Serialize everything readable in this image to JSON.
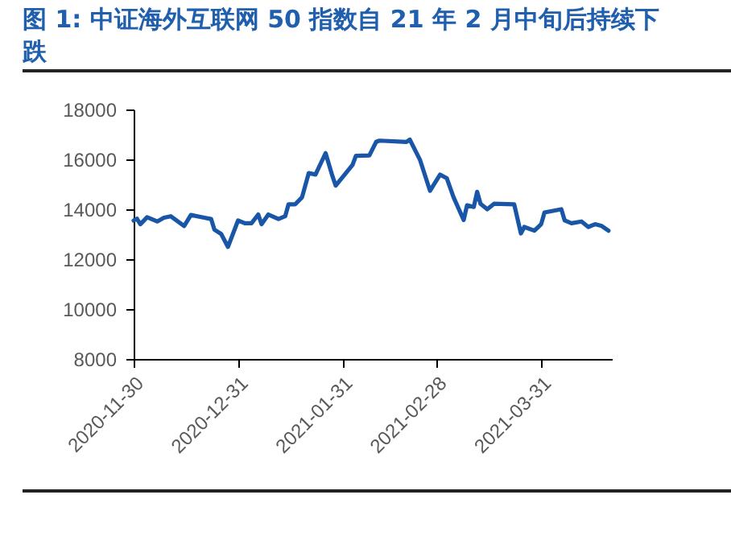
{
  "chart_data": {
    "type": "line",
    "title": "图 1: 中证海外互联网 50 指数自 21 年 2 月中旬后持续下跌",
    "x": [
      "2020-11-30",
      "2020-12-01",
      "2020-12-02",
      "2020-12-04",
      "2020-12-07",
      "2020-12-09",
      "2020-12-11",
      "2020-12-15",
      "2020-12-17",
      "2020-12-21",
      "2020-12-23",
      "2020-12-24",
      "2020-12-26",
      "2020-12-28",
      "2020-12-31",
      "2021-01-02",
      "2021-01-04",
      "2021-01-06",
      "2021-01-07",
      "2021-01-09",
      "2021-01-12",
      "2021-01-14",
      "2021-01-15",
      "2021-01-17",
      "2021-01-19",
      "2021-01-21",
      "2021-01-23",
      "2021-01-26",
      "2021-01-28",
      "2021-01-29",
      "2021-02-03",
      "2021-02-04",
      "2021-02-08",
      "2021-02-10",
      "2021-02-11",
      "2021-02-19",
      "2021-02-20",
      "2021-02-23",
      "2021-02-26",
      "2021-03-01",
      "2021-03-03",
      "2021-03-05",
      "2021-03-08",
      "2021-03-09",
      "2021-03-11",
      "2021-03-12",
      "2021-03-13",
      "2021-03-15",
      "2021-03-17",
      "2021-03-23",
      "2021-03-25",
      "2021-03-26",
      "2021-03-29",
      "2021-03-31",
      "2021-04-01",
      "2021-04-06",
      "2021-04-07",
      "2021-04-09",
      "2021-04-12",
      "2021-04-14",
      "2021-04-16",
      "2021-04-18",
      "2021-04-20"
    ],
    "series": [
      {
        "color": "#1a56a8",
        "values": [
          13550,
          13620,
          13400,
          13680,
          13510,
          13660,
          13720,
          13330,
          13770,
          13660,
          13610,
          13180,
          13010,
          12490,
          13550,
          13440,
          13440,
          13790,
          13400,
          13790,
          13610,
          13720,
          14200,
          14200,
          14480,
          15450,
          15390,
          16250,
          15340,
          14950,
          15780,
          16140,
          16160,
          16700,
          16750,
          16700,
          16790,
          15990,
          14740,
          15390,
          15240,
          14480,
          13570,
          14160,
          14090,
          14700,
          14220,
          14000,
          14220,
          14200,
          13030,
          13290,
          13140,
          13400,
          13870,
          14000,
          13550,
          13440,
          13510,
          13290,
          13400,
          13330,
          13140
        ]
      }
    ],
    "xlim": [
      "2020-11-30",
      "2021-04-21"
    ],
    "xticks": [
      "2020-11-30",
      "2020-12-31",
      "2021-01-31",
      "2021-02-28",
      "2021-03-31"
    ],
    "ylim": [
      8000,
      18000
    ],
    "yticks": [
      8000,
      10000,
      12000,
      14000,
      16000,
      18000
    ],
    "grid": false,
    "legend": false,
    "marker": "none",
    "line_style": "solid"
  }
}
